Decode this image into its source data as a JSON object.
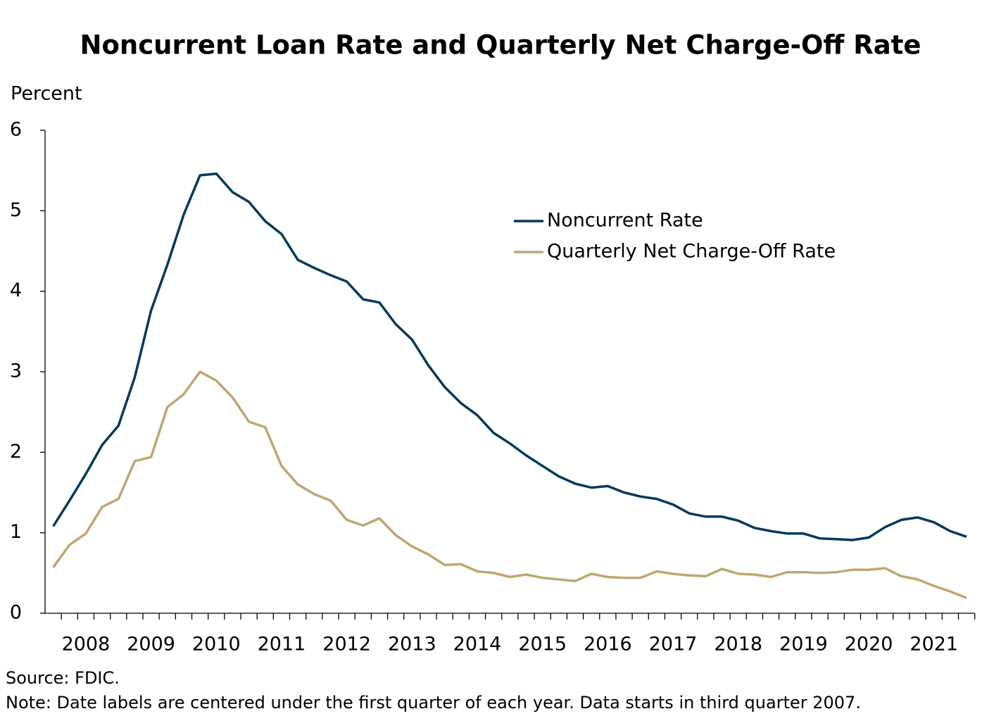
{
  "chart_data": {
    "type": "line",
    "title": "Noncurrent Loan Rate and Quarterly Net Charge-Off Rate",
    "y_label": "Percent",
    "source": "Source: FDIC.",
    "note": "Note: Date labels are centered under the first quarter of each year. Data starts in third quarter 2007.",
    "categories": [
      null,
      null,
      "2008",
      null,
      null,
      null,
      "2009",
      null,
      null,
      null,
      "2010",
      null,
      null,
      null,
      "2011",
      null,
      null,
      null,
      "2012",
      null,
      null,
      null,
      "2013",
      null,
      null,
      null,
      "2014",
      null,
      null,
      null,
      "2015",
      null,
      null,
      null,
      "2016",
      null,
      null,
      null,
      "2017",
      null,
      null,
      null,
      "2018",
      null,
      null,
      null,
      "2019",
      null,
      null,
      null,
      "2020",
      null,
      null,
      null,
      "2021",
      null,
      null
    ],
    "series": [
      {
        "name": "Noncurrent Rate",
        "color": "#003a5d",
        "values": [
          1.08,
          1.4,
          1.73,
          2.09,
          2.33,
          2.93,
          3.76,
          4.33,
          4.95,
          5.44,
          5.46,
          5.23,
          5.11,
          4.87,
          4.71,
          4.39,
          4.29,
          4.2,
          4.12,
          3.9,
          3.86,
          3.59,
          3.4,
          3.08,
          2.81,
          2.61,
          2.46,
          2.24,
          2.11,
          1.96,
          1.83,
          1.7,
          1.61,
          1.56,
          1.58,
          1.5,
          1.45,
          1.42,
          1.35,
          1.24,
          1.2,
          1.2,
          1.15,
          1.06,
          1.02,
          0.99,
          0.99,
          0.93,
          0.92,
          0.91,
          0.94,
          1.07,
          1.16,
          1.19,
          1.13,
          1.02,
          0.95
        ]
      },
      {
        "name": "Quarterly Net Charge-Off Rate",
        "color": "#bfa76f",
        "values": [
          0.57,
          0.85,
          0.99,
          1.32,
          1.42,
          1.89,
          1.94,
          2.56,
          2.72,
          3.0,
          2.89,
          2.68,
          2.38,
          2.31,
          1.83,
          1.6,
          1.48,
          1.4,
          1.16,
          1.09,
          1.18,
          0.97,
          0.83,
          0.73,
          0.6,
          0.61,
          0.52,
          0.5,
          0.45,
          0.48,
          0.44,
          0.42,
          0.4,
          0.49,
          0.45,
          0.44,
          0.44,
          0.52,
          0.49,
          0.47,
          0.46,
          0.55,
          0.49,
          0.48,
          0.45,
          0.51,
          0.51,
          0.5,
          0.51,
          0.54,
          0.54,
          0.56,
          0.46,
          0.42,
          0.34,
          0.27,
          0.19
        ]
      }
    ],
    "ylim": [
      0,
      6
    ],
    "yticks": [
      0,
      1,
      2,
      3,
      4,
      5,
      6
    ]
  }
}
